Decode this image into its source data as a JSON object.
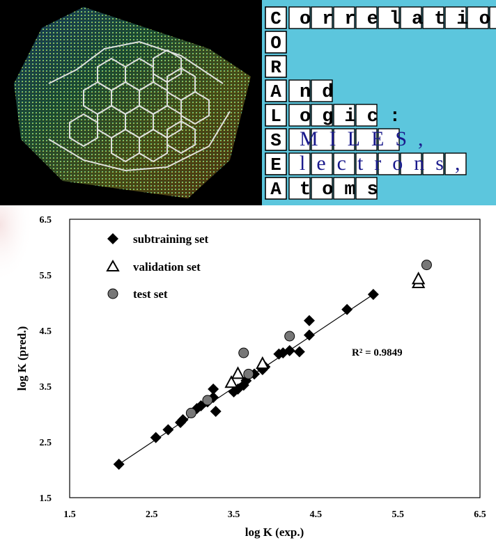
{
  "logo": {
    "column_letters": [
      "C",
      "O",
      "R",
      "A",
      "L",
      "S",
      "E",
      "A"
    ],
    "row_suffixes": [
      "orrelation",
      "",
      "",
      "nd",
      "ogic:",
      "MILES,",
      "lectrons,",
      "toms"
    ],
    "blue_suffix_rows": [
      5,
      6
    ],
    "colors": {
      "background": "#5cc6dd",
      "tile": "#ffffff",
      "tile_border": "#000000",
      "blue_text": "#1a1a8c"
    }
  },
  "nanotube_image": {
    "description_icon": "carbon-nanotube-molecular-surface-icon",
    "background": "#000000"
  },
  "chart_data": {
    "type": "scatter",
    "xlabel": "log K (exp.)",
    "ylabel": "log K (pred.)",
    "xlim": [
      1.5,
      6.5
    ],
    "ylim": [
      1.5,
      6.5
    ],
    "x_ticks": [
      "1.5",
      "2.5",
      "3.5",
      "4.5",
      "5.5",
      "6.5"
    ],
    "y_ticks": [
      "1.5",
      "2.5",
      "3.5",
      "4.5",
      "5.5",
      "6.5"
    ],
    "annotation": "R² = 0.9849",
    "legend_position": "top-left",
    "trendline": {
      "x": [
        2.1,
        5.2
      ],
      "y": [
        2.1,
        5.15
      ]
    },
    "series": [
      {
        "name": "subtraining set",
        "marker": "diamond",
        "color": "#000000",
        "points": [
          [
            2.1,
            2.1
          ],
          [
            2.55,
            2.58
          ],
          [
            2.7,
            2.72
          ],
          [
            2.85,
            2.85
          ],
          [
            2.88,
            2.9
          ],
          [
            3.05,
            3.1
          ],
          [
            3.1,
            3.15
          ],
          [
            3.18,
            3.22
          ],
          [
            3.25,
            3.3
          ],
          [
            3.25,
            3.45
          ],
          [
            3.28,
            3.05
          ],
          [
            3.5,
            3.4
          ],
          [
            3.55,
            3.45
          ],
          [
            3.62,
            3.52
          ],
          [
            3.65,
            3.6
          ],
          [
            3.75,
            3.72
          ],
          [
            3.85,
            3.8
          ],
          [
            3.88,
            3.85
          ],
          [
            4.05,
            4.08
          ],
          [
            4.1,
            4.1
          ],
          [
            4.18,
            4.14
          ],
          [
            4.3,
            4.12
          ],
          [
            4.42,
            4.42
          ],
          [
            4.42,
            4.68
          ],
          [
            4.88,
            4.88
          ],
          [
            5.2,
            5.15
          ]
        ]
      },
      {
        "name": "validation set",
        "marker": "triangle",
        "color": "#ffffff",
        "points": [
          [
            3.47,
            3.56
          ],
          [
            3.55,
            3.72
          ],
          [
            3.85,
            3.9
          ],
          [
            5.75,
            5.35
          ],
          [
            5.75,
            5.42
          ]
        ]
      },
      {
        "name": "test set",
        "marker": "circle",
        "color": "#777777",
        "points": [
          [
            2.98,
            3.02
          ],
          [
            3.18,
            3.25
          ],
          [
            3.62,
            4.1
          ],
          [
            3.68,
            3.72
          ],
          [
            4.18,
            4.4
          ],
          [
            5.85,
            5.68
          ]
        ]
      }
    ]
  }
}
